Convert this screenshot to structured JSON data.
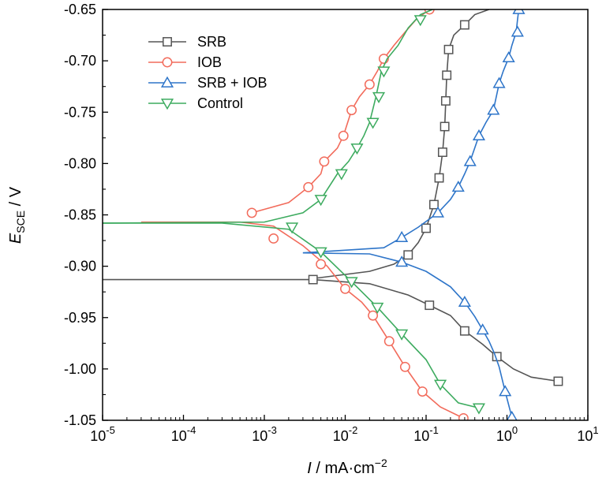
{
  "chart_data": {
    "type": "line",
    "xscale": "log",
    "xlim": [
      1e-05,
      10
    ],
    "ylim": [
      -1.05,
      -0.65
    ],
    "xlabel": {
      "italic": "I",
      "rest": " / mA·cm",
      "sup": "−2"
    },
    "ylabel": {
      "italic": "E",
      "sub": "SCE",
      "rest": " / V"
    },
    "x_ticks": [
      {
        "value": 1e-05,
        "base": "10",
        "exp": "-5"
      },
      {
        "value": 0.0001,
        "base": "10",
        "exp": "-4"
      },
      {
        "value": 0.001,
        "base": "10",
        "exp": "-3"
      },
      {
        "value": 0.01,
        "base": "10",
        "exp": "-2"
      },
      {
        "value": 0.1,
        "base": "10",
        "exp": "-1"
      },
      {
        "value": 1,
        "base": "10",
        "exp": "0"
      },
      {
        "value": 10,
        "base": "10",
        "exp": "1"
      }
    ],
    "y_ticks": [
      {
        "value": -0.65,
        "label": "-0.65"
      },
      {
        "value": -0.7,
        "label": "-0.70"
      },
      {
        "value": -0.75,
        "label": "-0.75"
      },
      {
        "value": -0.8,
        "label": "-0.80"
      },
      {
        "value": -0.85,
        "label": "-0.85"
      },
      {
        "value": -0.9,
        "label": "-0.90"
      },
      {
        "value": -0.95,
        "label": "-0.95"
      },
      {
        "value": -1.0,
        "label": "-1.00"
      },
      {
        "value": -1.05,
        "label": "-1.05"
      }
    ],
    "legend_position": "top-left",
    "series": [
      {
        "name": "SRB",
        "color": "#555555",
        "marker": "square",
        "points": [
          [
            1e-05,
            -0.913
          ],
          [
            0.0001,
            -0.913
          ],
          [
            0.001,
            -0.913
          ],
          [
            0.004,
            -0.913
          ],
          [
            0.02,
            -0.917
          ],
          [
            0.06,
            -0.928
          ],
          [
            0.11,
            -0.938
          ],
          [
            0.2,
            -0.948
          ],
          [
            0.3,
            -0.963
          ],
          [
            0.5,
            -0.976
          ],
          [
            0.75,
            -0.988
          ],
          [
            1.2,
            -1.0
          ],
          [
            2.0,
            -1.008
          ],
          [
            4.3,
            -1.012
          ]
        ],
        "points_upper": [
          [
            0.004,
            -0.912
          ],
          [
            0.02,
            -0.905
          ],
          [
            0.04,
            -0.898
          ],
          [
            0.06,
            -0.889
          ],
          [
            0.08,
            -0.877
          ],
          [
            0.1,
            -0.863
          ],
          [
            0.125,
            -0.84
          ],
          [
            0.145,
            -0.814
          ],
          [
            0.16,
            -0.789
          ],
          [
            0.17,
            -0.764
          ],
          [
            0.175,
            -0.739
          ],
          [
            0.18,
            -0.714
          ],
          [
            0.19,
            -0.689
          ],
          [
            0.22,
            -0.675
          ],
          [
            0.3,
            -0.665
          ],
          [
            0.4,
            -0.655
          ],
          [
            0.6,
            -0.65
          ]
        ],
        "markers": [
          [
            0.004,
            -0.913
          ],
          [
            0.11,
            -0.938
          ],
          [
            0.3,
            -0.963
          ],
          [
            0.75,
            -0.988
          ],
          [
            4.3,
            -1.012
          ],
          [
            0.06,
            -0.889
          ],
          [
            0.1,
            -0.863
          ],
          [
            0.125,
            -0.84
          ],
          [
            0.145,
            -0.814
          ],
          [
            0.16,
            -0.789
          ],
          [
            0.17,
            -0.764
          ],
          [
            0.175,
            -0.739
          ],
          [
            0.18,
            -0.714
          ],
          [
            0.19,
            -0.689
          ],
          [
            0.3,
            -0.665
          ]
        ]
      },
      {
        "name": "IOB",
        "color": "#f26b5b",
        "marker": "circle",
        "points": [
          [
            3e-05,
            -0.857
          ],
          [
            0.0005,
            -0.857
          ],
          [
            0.0013,
            -0.861
          ],
          [
            0.003,
            -0.88
          ],
          [
            0.006,
            -0.9
          ],
          [
            0.01,
            -0.922
          ],
          [
            0.016,
            -0.935
          ],
          [
            0.022,
            -0.948
          ],
          [
            0.035,
            -0.973
          ],
          [
            0.055,
            -0.998
          ],
          [
            0.09,
            -1.022
          ],
          [
            0.15,
            -1.037
          ],
          [
            0.29,
            -1.048
          ]
        ],
        "points_upper": [
          [
            0.0007,
            -0.848
          ],
          [
            0.002,
            -0.838
          ],
          [
            0.0035,
            -0.823
          ],
          [
            0.005,
            -0.81
          ],
          [
            0.0055,
            -0.798
          ],
          [
            0.008,
            -0.785
          ],
          [
            0.0095,
            -0.773
          ],
          [
            0.012,
            -0.748
          ],
          [
            0.015,
            -0.735
          ],
          [
            0.02,
            -0.723
          ],
          [
            0.025,
            -0.71
          ],
          [
            0.03,
            -0.698
          ],
          [
            0.04,
            -0.685
          ],
          [
            0.055,
            -0.672
          ],
          [
            0.075,
            -0.66
          ],
          [
            0.11,
            -0.65
          ]
        ],
        "markers": [
          [
            0.0007,
            -0.848
          ],
          [
            0.0013,
            -0.873
          ],
          [
            0.005,
            -0.898
          ],
          [
            0.01,
            -0.922
          ],
          [
            0.022,
            -0.948
          ],
          [
            0.035,
            -0.973
          ],
          [
            0.055,
            -0.998
          ],
          [
            0.09,
            -1.022
          ],
          [
            0.29,
            -1.048
          ],
          [
            0.0035,
            -0.823
          ],
          [
            0.0055,
            -0.798
          ],
          [
            0.0095,
            -0.773
          ],
          [
            0.012,
            -0.748
          ],
          [
            0.02,
            -0.723
          ],
          [
            0.03,
            -0.698
          ],
          [
            0.11,
            -0.65
          ]
        ]
      },
      {
        "name": "SRB + IOB",
        "color": "#2e75c9",
        "marker": "triangle-up",
        "points": [
          [
            0.003,
            -0.887
          ],
          [
            0.02,
            -0.888
          ],
          [
            0.05,
            -0.896
          ],
          [
            0.1,
            -0.905
          ],
          [
            0.2,
            -0.92
          ],
          [
            0.3,
            -0.935
          ],
          [
            0.4,
            -0.949
          ],
          [
            0.5,
            -0.962
          ],
          [
            0.6,
            -0.973
          ],
          [
            0.7,
            -0.985
          ],
          [
            0.8,
            -0.998
          ],
          [
            0.95,
            -1.022
          ],
          [
            1.15,
            -1.047
          ]
        ],
        "points_upper": [
          [
            0.003,
            -0.887
          ],
          [
            0.03,
            -0.882
          ],
          [
            0.05,
            -0.872
          ],
          [
            0.08,
            -0.862
          ],
          [
            0.14,
            -0.848
          ],
          [
            0.2,
            -0.835
          ],
          [
            0.25,
            -0.823
          ],
          [
            0.3,
            -0.81
          ],
          [
            0.35,
            -0.798
          ],
          [
            0.45,
            -0.773
          ],
          [
            0.55,
            -0.76
          ],
          [
            0.68,
            -0.748
          ],
          [
            0.8,
            -0.722
          ],
          [
            0.9,
            -0.71
          ],
          [
            1.05,
            -0.697
          ],
          [
            1.15,
            -0.685
          ],
          [
            1.3,
            -0.672
          ],
          [
            1.35,
            -0.66
          ],
          [
            1.4,
            -0.65
          ]
        ],
        "markers": [
          [
            0.05,
            -0.896
          ],
          [
            0.3,
            -0.935
          ],
          [
            0.5,
            -0.962
          ],
          [
            0.95,
            -1.022
          ],
          [
            1.15,
            -1.047
          ],
          [
            0.05,
            -0.872
          ],
          [
            0.14,
            -0.848
          ],
          [
            0.25,
            -0.823
          ],
          [
            0.35,
            -0.798
          ],
          [
            0.45,
            -0.773
          ],
          [
            0.68,
            -0.748
          ],
          [
            0.8,
            -0.722
          ],
          [
            1.05,
            -0.697
          ],
          [
            1.35,
            -0.672
          ],
          [
            1.4,
            -0.65
          ]
        ]
      },
      {
        "name": "Control",
        "color": "#3dab5f",
        "marker": "triangle-down",
        "points": [
          [
            1e-05,
            -0.858
          ],
          [
            0.0003,
            -0.858
          ],
          [
            0.002,
            -0.864
          ],
          [
            0.005,
            -0.886
          ],
          [
            0.012,
            -0.915
          ],
          [
            0.025,
            -0.94
          ],
          [
            0.05,
            -0.966
          ],
          [
            0.1,
            -0.991
          ],
          [
            0.15,
            -1.015
          ],
          [
            0.25,
            -1.033
          ],
          [
            0.45,
            -1.038
          ]
        ],
        "points_upper": [
          [
            1e-05,
            -0.858
          ],
          [
            0.001,
            -0.857
          ],
          [
            0.003,
            -0.848
          ],
          [
            0.005,
            -0.835
          ],
          [
            0.008,
            -0.81
          ],
          [
            0.011,
            -0.798
          ],
          [
            0.014,
            -0.785
          ],
          [
            0.017,
            -0.773
          ],
          [
            0.02,
            -0.76
          ],
          [
            0.024,
            -0.735
          ],
          [
            0.028,
            -0.71
          ],
          [
            0.033,
            -0.698
          ],
          [
            0.045,
            -0.685
          ],
          [
            0.06,
            -0.668
          ],
          [
            0.085,
            -0.655
          ],
          [
            0.12,
            -0.65
          ]
        ],
        "markers": [
          [
            0.005,
            -0.886
          ],
          [
            0.012,
            -0.915
          ],
          [
            0.025,
            -0.94
          ],
          [
            0.05,
            -0.966
          ],
          [
            0.15,
            -1.015
          ],
          [
            0.45,
            -1.038
          ],
          [
            0.0022,
            -0.862
          ],
          [
            0.005,
            -0.835
          ],
          [
            0.009,
            -0.81
          ],
          [
            0.014,
            -0.785
          ],
          [
            0.022,
            -0.76
          ],
          [
            0.026,
            -0.735
          ],
          [
            0.03,
            -0.71
          ],
          [
            0.085,
            -0.66
          ]
        ]
      }
    ]
  }
}
